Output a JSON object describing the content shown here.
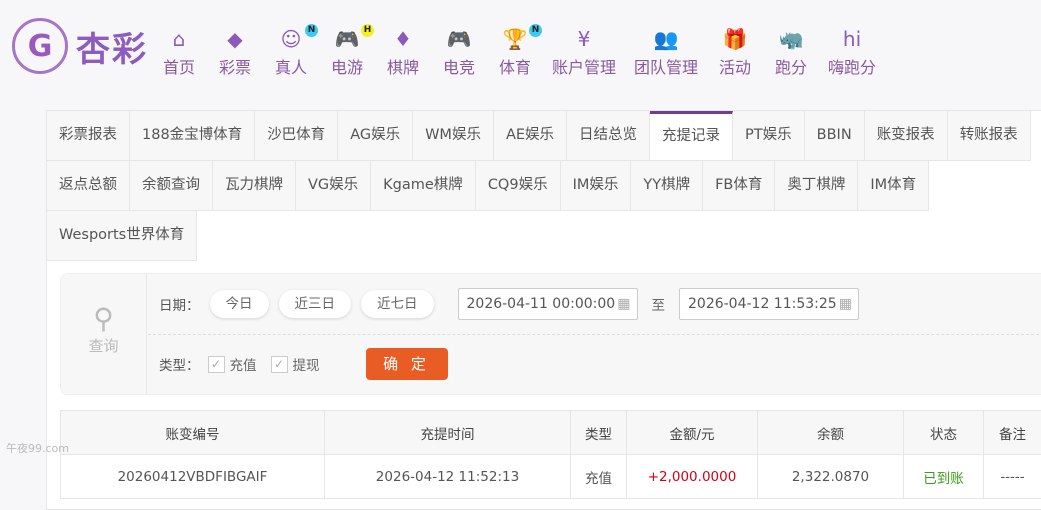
{
  "logo": {
    "text": "杏彩",
    "mark": "G"
  },
  "nav": [
    {
      "label": "首页",
      "icon": "home-icon",
      "glyph": "⌂"
    },
    {
      "label": "彩票",
      "icon": "ticket-icon",
      "glyph": "◆"
    },
    {
      "label": "真人",
      "icon": "live-dealer-icon",
      "glyph": "☺",
      "badge": "N",
      "badge_color": "#3cc8f0"
    },
    {
      "label": "电游",
      "icon": "gamepad-icon",
      "glyph": "🎮",
      "badge": "H",
      "badge_color": "#f5f020"
    },
    {
      "label": "棋牌",
      "icon": "cards-icon",
      "glyph": "♦"
    },
    {
      "label": "电竞",
      "icon": "esports-gamepad-icon",
      "glyph": "🎮"
    },
    {
      "label": "体育",
      "icon": "trophy-icon",
      "glyph": "🏆",
      "badge": "N",
      "badge_color": "#3cc8f0"
    },
    {
      "label": "账户管理",
      "icon": "yuan-coin-icon",
      "glyph": "¥"
    },
    {
      "label": "团队管理",
      "icon": "team-icon",
      "glyph": "👥"
    },
    {
      "label": "活动",
      "icon": "gift-icon",
      "glyph": "🎁"
    },
    {
      "label": "跑分",
      "icon": "rhino-icon",
      "glyph": "🦏"
    },
    {
      "label": "嗨跑分",
      "icon": "hi-app-icon",
      "glyph": "hi"
    }
  ],
  "tabs": [
    "彩票报表",
    "188金宝博体育",
    "沙巴体育",
    "AG娱乐",
    "WM娱乐",
    "AE娱乐",
    "日结总览",
    "充提记录",
    "PT娱乐",
    "BBIN",
    "账变报表",
    "转账报表",
    "返点总额",
    "余额查询",
    "瓦力棋牌",
    "VG娱乐",
    "Kgame棋牌",
    "CQ9娱乐",
    "IM娱乐",
    "YY棋牌",
    "FB体育",
    "奥丁棋牌",
    "IM体育",
    "Wesports世界体育"
  ],
  "active_tab": "充提记录",
  "query": {
    "title": "查询",
    "date_label": "日期：",
    "quick": [
      "今日",
      "近三日",
      "近七日"
    ],
    "start": "2026-04-11 00:00:00",
    "to": "至",
    "end": "2026-04-12 11:53:25",
    "type_label": "类型：",
    "types": [
      {
        "label": "充值",
        "checked": true
      },
      {
        "label": "提现",
        "checked": true
      }
    ],
    "confirm": "确 定"
  },
  "table": {
    "headers": [
      "账变编号",
      "充提时间",
      "类型",
      "金额/元",
      "余额",
      "状态",
      "备注"
    ],
    "rows": [
      [
        "20260412VBDFIBGAIF",
        "2026-04-12 11:52:13",
        "充值",
        "+2,000.0000",
        "2,322.0870",
        "已到账",
        "-----"
      ]
    ]
  },
  "watermark": "午夜99.com",
  "colors": {
    "accent": "#6d3f8e",
    "confirm": "#e95d25",
    "positive": "#d0021b",
    "status_ok": "#3c9b1a"
  }
}
